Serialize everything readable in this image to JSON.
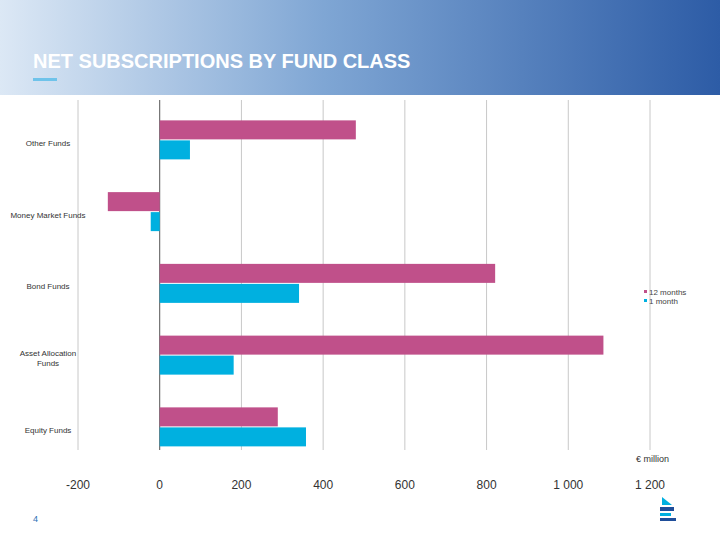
{
  "chart_data": {
    "type": "bar",
    "orientation": "horizontal",
    "title": "NET SUBSCRIPTIONS BY FUND CLASS",
    "x_label": "€ million",
    "categories": [
      "Other Funds",
      "Money Market Funds",
      "Bond Funds",
      "Asset Allocation Funds",
      "Equity Funds"
    ],
    "series": [
      {
        "name": "12 months",
        "color": "#c0508a",
        "values": [
          480,
          -127,
          821,
          1086,
          289
        ]
      },
      {
        "name": "1 month",
        "color": "#00b0e0",
        "values": [
          74,
          -22,
          341,
          181,
          358
        ]
      }
    ],
    "xlim": [
      -200,
      1200
    ],
    "xticks": [
      -200,
      0,
      200,
      400,
      600,
      800,
      {
        "value": 1000,
        "label": "1 000"
      },
      {
        "value": 1200,
        "label": "1 200"
      }
    ],
    "grid": true,
    "legend": "right"
  },
  "slide": {
    "page_number": "4"
  }
}
